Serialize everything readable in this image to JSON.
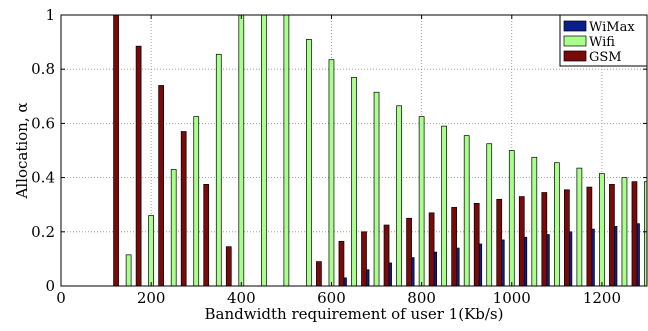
{
  "chart_data": {
    "type": "bar",
    "xlabel": "Bandwidth requirement of user 1(Kb/s)",
    "ylabel": "Allocation, α",
    "xlim": [
      0,
      1300
    ],
    "ylim": [
      0,
      1
    ],
    "xticks": [
      "0",
      "200",
      "400",
      "600",
      "800",
      "1000",
      "1200"
    ],
    "xtick_values": [
      0,
      200,
      400,
      600,
      800,
      1000,
      1200
    ],
    "yticks": [
      "0",
      "0.2",
      "0.4",
      "0.6",
      "0.8",
      "1"
    ],
    "ytick_values": [
      0,
      0.2,
      0.4,
      0.6,
      0.8,
      1
    ],
    "grid": true,
    "legend_position": "top-right",
    "x": [
      100,
      150,
      200,
      250,
      300,
      350,
      400,
      450,
      500,
      550,
      600,
      650,
      700,
      750,
      800,
      850,
      900,
      950,
      1000,
      1050,
      1100,
      1150,
      1200,
      1250,
      1300
    ],
    "series": [
      {
        "name": "WiMax",
        "color": "#0a1e8c",
        "values": [
          0,
          0,
          0,
          0,
          0,
          0,
          0,
          0,
          0,
          0,
          0,
          0.03,
          0.06,
          0.085,
          0.105,
          0.125,
          0.14,
          0.155,
          0.17,
          0.18,
          0.19,
          0.2,
          0.21,
          0.22,
          0.23
        ]
      },
      {
        "name": "Wifi",
        "color": "#a8ff8c",
        "values": [
          0,
          0.115,
          0.26,
          0.43,
          0.625,
          0.855,
          1,
          1,
          1,
          0.91,
          0.835,
          0.77,
          0.715,
          0.665,
          0.625,
          0.59,
          0.555,
          0.525,
          0.5,
          0.475,
          0.455,
          0.435,
          0.415,
          0.4,
          0.385
        ]
      },
      {
        "name": "GSM",
        "color": "#7a0a0a",
        "values": [
          1,
          0.885,
          0.74,
          0.57,
          0.375,
          0.145,
          0,
          0,
          0,
          0.09,
          0.165,
          0.2,
          0.225,
          0.25,
          0.27,
          0.29,
          0.305,
          0.32,
          0.33,
          0.345,
          0.355,
          0.365,
          0.375,
          0.385,
          0.385
        ]
      }
    ]
  }
}
